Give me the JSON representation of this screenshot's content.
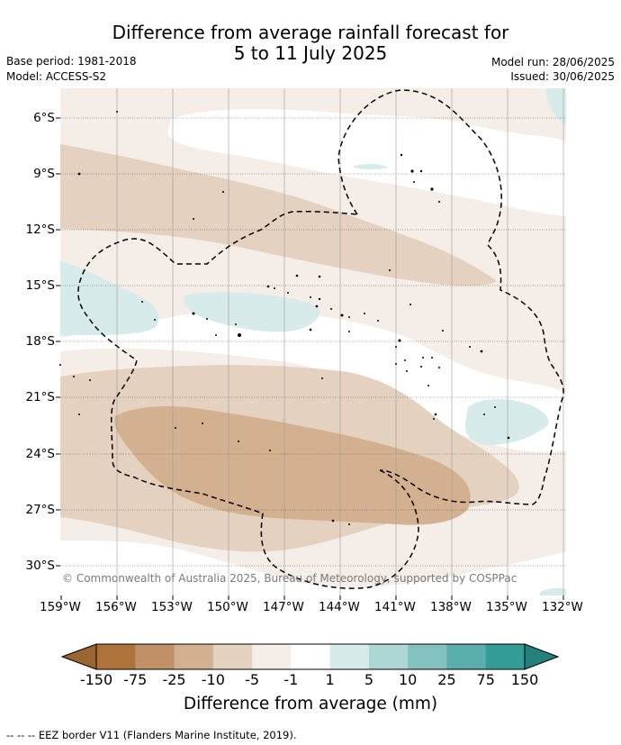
{
  "title": {
    "line1": "Difference from average rainfall forecast for",
    "line2": "5 to 11 July 2025"
  },
  "meta": {
    "base_period": "Base period: 1981-2018",
    "model": "Model: ACCESS-S2",
    "model_run": "Model run: 28/06/2025",
    "issued": "Issued: 30/06/2025"
  },
  "axes": {
    "lat_labels": [
      "6°S",
      "9°S",
      "12°S",
      "15°S",
      "18°S",
      "21°S",
      "24°S",
      "27°S",
      "30°S"
    ],
    "lon_labels": [
      "159°W",
      "156°W",
      "153°W",
      "150°W",
      "147°W",
      "144°W",
      "141°W",
      "138°W",
      "135°W",
      "132°W"
    ]
  },
  "copyright": "© Commonwealth of Australia 2025, Bureau of Meteorology, supported by COSPPac",
  "colorbar": {
    "title": "Difference from average (mm)",
    "labels": [
      "-150",
      "-75",
      "-25",
      "-10",
      "-5",
      "-1",
      "1",
      "5",
      "10",
      "25",
      "75",
      "150"
    ],
    "colors": [
      "#ad733b",
      "#c09066",
      "#d3b08f",
      "#e5d1c0",
      "#f5ede7",
      "#ffffff",
      "#d7ebea",
      "#add6d4",
      "#83c2bf",
      "#5aaeab",
      "#339c97"
    ],
    "under_color": "#9a6530",
    "over_color": "#24807c"
  },
  "footer": {
    "legend_symbol": "-- -- --",
    "legend_text": "EEZ border V11 (Flanders Marine Institute, 2019)."
  }
}
